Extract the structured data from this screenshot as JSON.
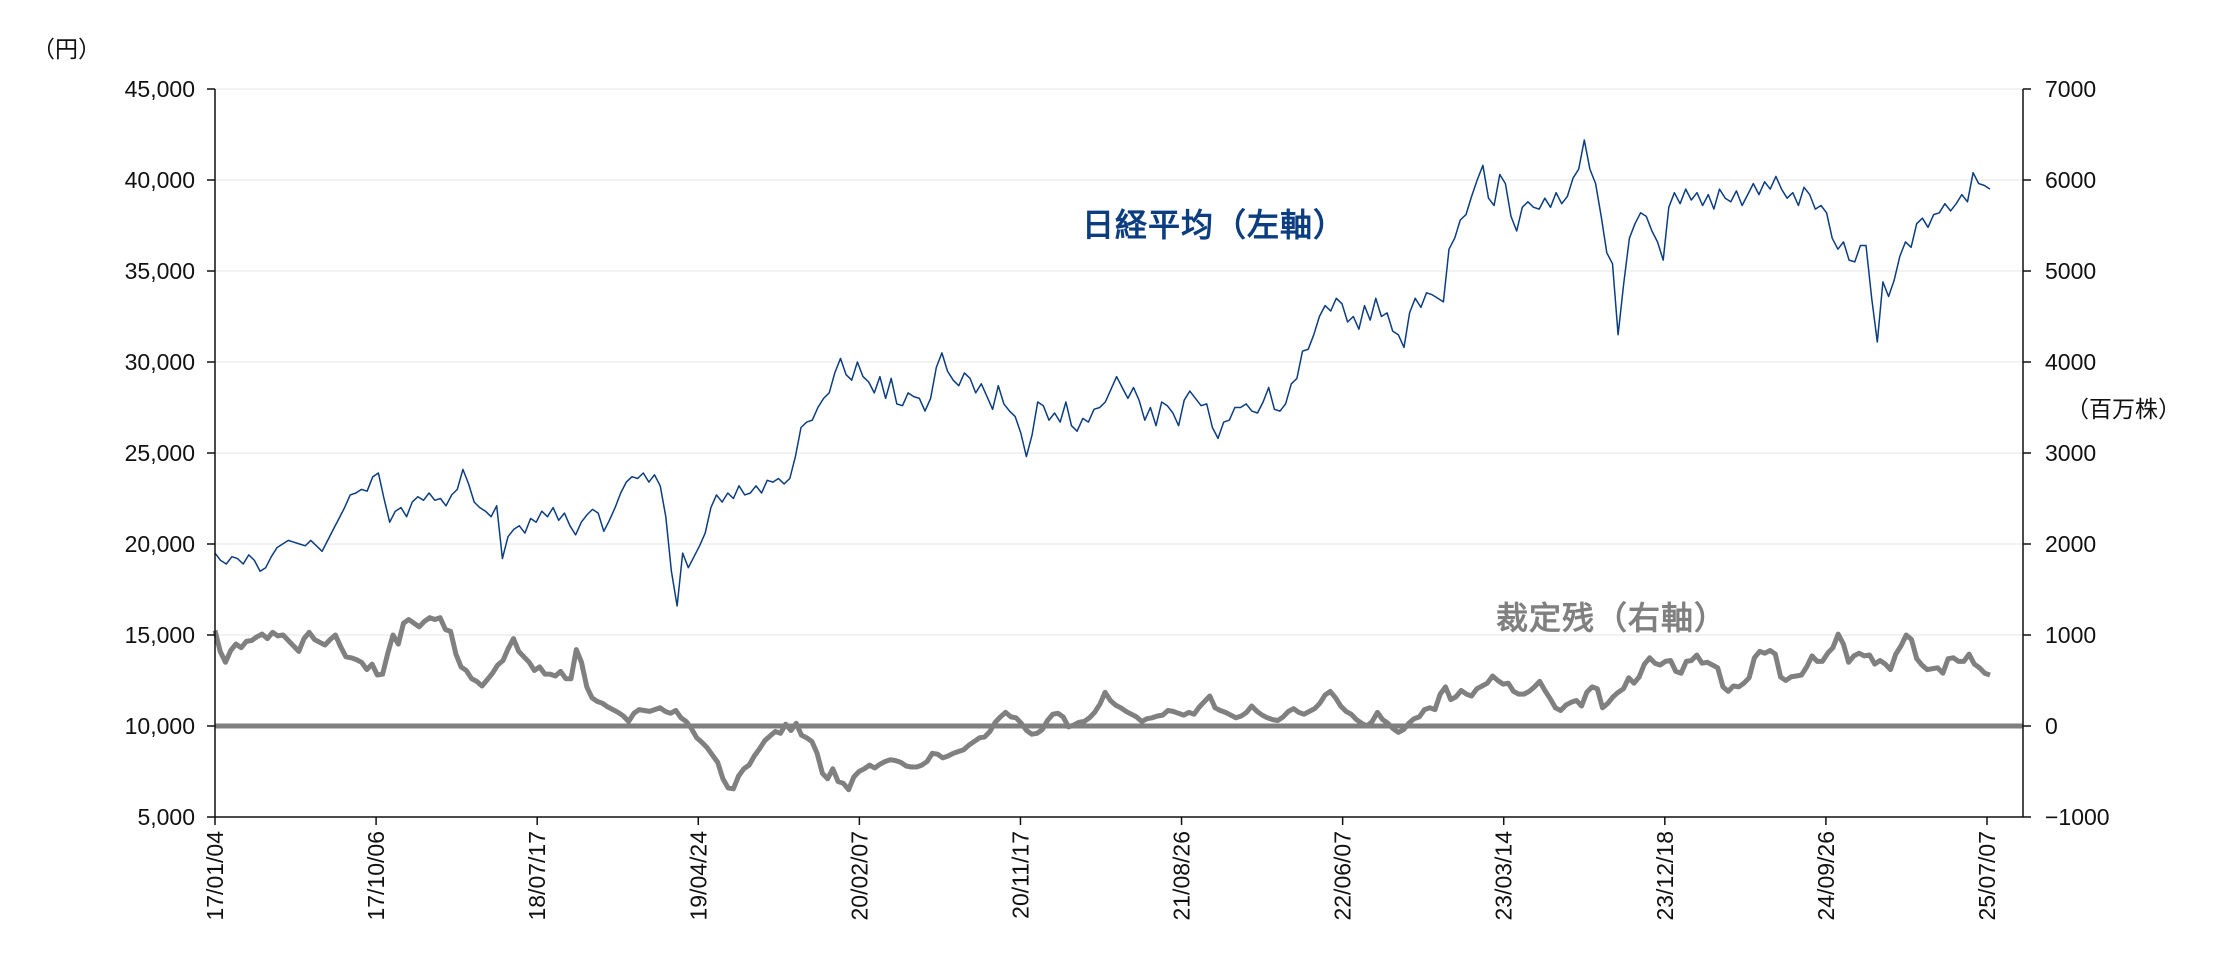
{
  "chart_data": {
    "type": "line",
    "title": "",
    "left_axis": {
      "unit_label": "（円）",
      "ticks": [
        "45,000",
        "40,000",
        "35,000",
        "30,000",
        "25,000",
        "20,000",
        "15,000",
        "10,000",
        "5,000"
      ],
      "ylim": [
        5000,
        45000
      ]
    },
    "right_axis": {
      "unit_label": "（百万株）",
      "ticks": [
        "7000",
        "6000",
        "5000",
        "4000",
        "3000",
        "2000",
        "1000",
        "0",
        "−1000"
      ],
      "ylim": [
        -1000,
        7000
      ]
    },
    "x_ticks": [
      "17/01/04",
      "17/10/06",
      "18/07/17",
      "19/04/24",
      "20/02/07",
      "20/11/17",
      "21/08/26",
      "22/06/07",
      "23/03/14",
      "23/12/18",
      "24/09/26",
      "25/07/07"
    ],
    "series": [
      {
        "name": "日経平均（左軸）",
        "axis": "left",
        "color": "#0b3d80",
        "values": [
          19500,
          19100,
          18900,
          19300,
          19200,
          18900,
          19400,
          19100,
          18500,
          18700,
          19300,
          19800,
          20000,
          20200,
          20100,
          20000,
          19900,
          20200,
          19900,
          19600,
          20200,
          20800,
          21400,
          22000,
          22700,
          22800,
          23000,
          22900,
          23700,
          23900,
          22500,
          21200,
          21800,
          22000,
          21500,
          22300,
          22600,
          22400,
          22800,
          22400,
          22500,
          22100,
          22700,
          23000,
          24100,
          23300,
          22300,
          22000,
          21800,
          21500,
          22100,
          19200,
          20400,
          20800,
          21000,
          20600,
          21400,
          21200,
          21800,
          21500,
          22000,
          21300,
          21700,
          21000,
          20500,
          21200,
          21600,
          21900,
          21700,
          20700,
          21300,
          22000,
          22800,
          23400,
          23700,
          23600,
          23900,
          23400,
          23800,
          23200,
          21500,
          18500,
          16600,
          19500,
          18700,
          19300,
          19900,
          20600,
          22000,
          22700,
          22300,
          22800,
          22500,
          23200,
          22700,
          22800,
          23200,
          22800,
          23500,
          23400,
          23600,
          23300,
          23600,
          24800,
          26400,
          26700,
          26800,
          27500,
          28000,
          28300,
          29400,
          30200,
          29300,
          29000,
          30000,
          29200,
          28900,
          28300,
          29200,
          28000,
          29100,
          27700,
          27600,
          28300,
          28100,
          28000,
          27300,
          28000,
          29700,
          30500,
          29500,
          29000,
          28700,
          29400,
          29100,
          28300,
          28800,
          28100,
          27400,
          28700,
          27700,
          27300,
          27000,
          26100,
          24800,
          26000,
          27800,
          27600,
          26800,
          27200,
          26700,
          27800,
          26500,
          26200,
          26900,
          26700,
          27400,
          27500,
          27800,
          28500,
          29200,
          28600,
          28000,
          28600,
          27900,
          26800,
          27500,
          26500,
          27800,
          27600,
          27200,
          26500,
          27900,
          28400,
          28000,
          27600,
          27700,
          26400,
          25800,
          26700,
          26800,
          27500,
          27500,
          27700,
          27300,
          27200,
          27800,
          28600,
          27400,
          27300,
          27700,
          28800,
          29100,
          30600,
          30700,
          31500,
          32500,
          33100,
          32800,
          33500,
          33200,
          32200,
          32500,
          31800,
          33100,
          32300,
          33500,
          32500,
          32700,
          31700,
          31500,
          30800,
          32700,
          33500,
          33000,
          33800,
          33700,
          33500,
          33300,
          36200,
          36800,
          37800,
          38100,
          39100,
          40000,
          40800,
          39000,
          38600,
          40300,
          39800,
          38000,
          37200,
          38500,
          38800,
          38500,
          38400,
          39000,
          38500,
          39300,
          38700,
          39100,
          40100,
          40600,
          42200,
          40600,
          39800,
          38000,
          36000,
          35400,
          31500,
          34300,
          36800,
          37600,
          38200,
          38000,
          37200,
          36600,
          35600,
          38500,
          39300,
          38700,
          39500,
          38900,
          39300,
          38600,
          39200,
          38400,
          39500,
          39000,
          38800,
          39400,
          38600,
          39200,
          39800,
          39200,
          39900,
          39500,
          40200,
          39500,
          39000,
          39300,
          38600,
          39600,
          39200,
          38400,
          38600,
          38200,
          36800,
          36200,
          36600,
          35600,
          35500,
          36400,
          36400,
          33500,
          31100,
          34400,
          33600,
          34500,
          35800,
          36600,
          36300,
          37600,
          37900,
          37400,
          38100,
          38200,
          38700,
          38300,
          38700,
          39200,
          38800,
          40400,
          39800,
          39700,
          39500
        ]
      },
      {
        "name": "裁定残（右軸）",
        "axis": "right",
        "color": "#808080",
        "values": [
          1050,
          820,
          700,
          830,
          900,
          860,
          930,
          940,
          980,
          1010,
          960,
          1030,
          990,
          1000,
          940,
          880,
          820,
          960,
          1030,
          950,
          920,
          890,
          950,
          1000,
          870,
          760,
          750,
          730,
          700,
          620,
          680,
          560,
          570,
          800,
          1000,
          900,
          1130,
          1170,
          1130,
          1090,
          1150,
          1190,
          1170,
          1190,
          1060,
          1040,
          790,
          650,
          610,
          520,
          490,
          440,
          510,
          580,
          670,
          720,
          850,
          960,
          820,
          760,
          700,
          610,
          650,
          570,
          570,
          550,
          600,
          520,
          520,
          840,
          700,
          430,
          310,
          270,
          250,
          210,
          180,
          150,
          110,
          50,
          140,
          180,
          170,
          160,
          180,
          200,
          160,
          140,
          170,
          90,
          50,
          -30,
          -130,
          -180,
          -240,
          -320,
          -400,
          -580,
          -680,
          -690,
          -550,
          -470,
          -430,
          -330,
          -250,
          -160,
          -110,
          -60,
          -80,
          20,
          -50,
          30,
          -100,
          -130,
          -170,
          -300,
          -520,
          -580,
          -470,
          -610,
          -630,
          -700,
          -560,
          -500,
          -470,
          -430,
          -460,
          -420,
          -390,
          -370,
          -380,
          -400,
          -440,
          -450,
          -450,
          -430,
          -390,
          -300,
          -310,
          -350,
          -330,
          -300,
          -280,
          -260,
          -210,
          -170,
          -130,
          -120,
          -60,
          40,
          100,
          150,
          100,
          90,
          30,
          -50,
          -90,
          -80,
          -40,
          60,
          130,
          140,
          100,
          -10,
          10,
          40,
          50,
          90,
          150,
          240,
          370,
          280,
          230,
          200,
          160,
          130,
          100,
          50,
          80,
          90,
          110,
          120,
          170,
          160,
          140,
          120,
          150,
          130,
          210,
          270,
          330,
          200,
          170,
          150,
          120,
          90,
          110,
          150,
          220,
          160,
          120,
          90,
          70,
          60,
          100,
          160,
          190,
          150,
          130,
          160,
          190,
          250,
          340,
          380,
          310,
          220,
          160,
          130,
          70,
          30,
          0,
          50,
          150,
          70,
          30,
          -30,
          -70,
          -40,
          30,
          80,
          100,
          180,
          200,
          180,
          350,
          430,
          290,
          320,
          390,
          350,
          330,
          410,
          440,
          470,
          550,
          500,
          460,
          470,
          380,
          350,
          350,
          380,
          430,
          490,
          390,
          300,
          200,
          170,
          230,
          260,
          280,
          220,
          370,
          430,
          410,
          200,
          250,
          320,
          370,
          410,
          530,
          470,
          540,
          680,
          750,
          690,
          670,
          710,
          720,
          600,
          580,
          710,
          720,
          780,
          690,
          700,
          670,
          640,
          430,
          380,
          440,
          430,
          470,
          530,
          750,
          820,
          800,
          830,
          790,
          540,
          500,
          540,
          550,
          560,
          650,
          770,
          710,
          710,
          800,
          860,
          1010,
          900,
          700,
          770,
          800,
          770,
          780,
          680,
          720,
          680,
          620,
          790,
          880,
          1000,
          950,
          740,
          670,
          620,
          630,
          640,
          580,
          740,
          750,
          710,
          710,
          790,
          680,
          640,
          580,
          560
        ]
      },
      {
        "name": "zero-line",
        "axis": "right",
        "color": "#808080",
        "values": [
          0
        ]
      }
    ],
    "annotations": [
      {
        "text": "日経平均（左軸）",
        "color": "#0b3d80"
      },
      {
        "text": "裁定残（右軸）",
        "color": "#808080"
      }
    ],
    "grid": true
  },
  "labels": {
    "left_unit": "（円）",
    "right_unit": "（百万株）",
    "legend_nikkei": "日経平均（左軸）",
    "legend_arbitrage": "裁定残（右軸）"
  }
}
